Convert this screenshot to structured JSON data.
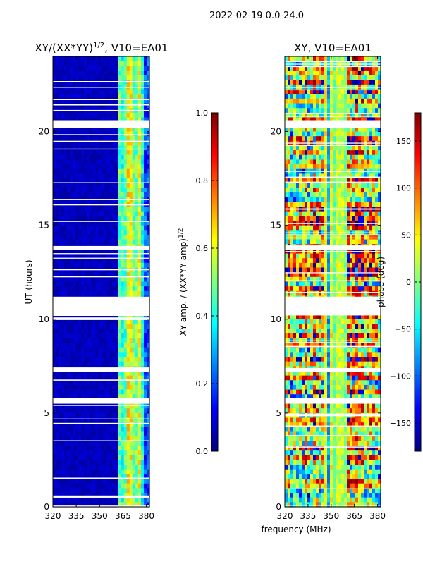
{
  "suptitle": "2022-02-19 0.0-24.0",
  "colors": {
    "jet_stops": [
      "#00007f",
      "#0000ff",
      "#007fff",
      "#00ffff",
      "#7fff7f",
      "#ffff00",
      "#ff7f00",
      "#ff0000",
      "#7f0000"
    ],
    "gap": "#ffffff",
    "axis": "#000000"
  },
  "chart_data": [
    {
      "type": "heatmap",
      "title": "XY/(XX*YY)^1/2, V10=EA01",
      "title_main": "XY/(XX*YY)",
      "title_sup": "1/2",
      "title_tail": ", V10=EA01",
      "xlabel": "",
      "ylabel": "UT (hours)",
      "xlim": [
        320,
        382
      ],
      "ylim": [
        0,
        24
      ],
      "xticks": [
        320,
        335,
        350,
        365,
        380
      ],
      "yticks": [
        0,
        5,
        10,
        15,
        20
      ],
      "gaps_hours": [
        [
          20.2,
          20.6
        ],
        [
          13.7,
          13.9
        ],
        [
          10.2,
          11.2
        ],
        [
          7.2,
          7.4
        ],
        [
          5.5,
          5.8
        ]
      ],
      "colorbar": {
        "label": "XY amp. / (XX*YY amp)^1/2",
        "label_main": "XY amp. / (XX*YY amp)",
        "label_sup": "1/2",
        "range": [
          0.0,
          1.0
        ],
        "ticks": [
          "0.0",
          "0.2",
          "0.4",
          "0.6",
          "0.8",
          "1.0"
        ]
      }
    },
    {
      "type": "heatmap",
      "title": "XY, V10=EA01",
      "xlabel": "frequency (MHz)",
      "ylabel": "",
      "xlim": [
        320,
        382
      ],
      "ylim": [
        0,
        24
      ],
      "xticks": [
        320,
        335,
        350,
        365,
        380
      ],
      "yticks": [
        0,
        5,
        10,
        15,
        20
      ],
      "gaps_hours": [
        [
          20.2,
          20.6
        ],
        [
          13.7,
          13.9
        ],
        [
          10.2,
          11.2
        ],
        [
          7.2,
          7.4
        ],
        [
          5.5,
          5.8
        ]
      ],
      "colorbar": {
        "label": "phase (deg)",
        "range": [
          -180,
          180
        ],
        "ticks": [
          "−150",
          "−100",
          "−50",
          "0",
          "50",
          "100",
          "150"
        ]
      }
    }
  ]
}
